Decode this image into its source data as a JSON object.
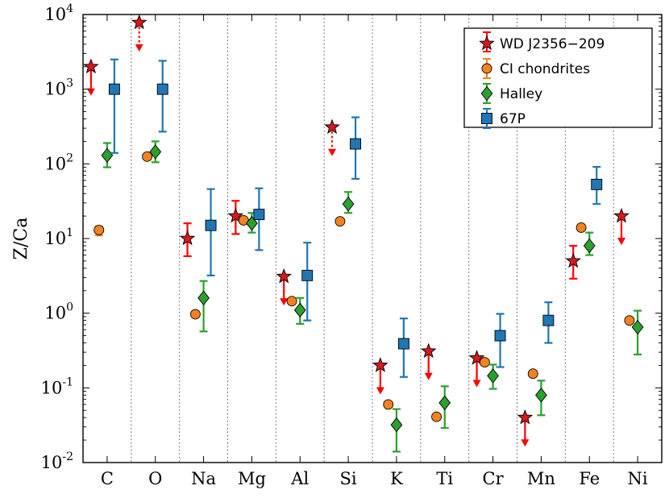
{
  "chart_data": {
    "type": "scatter",
    "yscale": "log",
    "ylim": [
      0.01,
      10000
    ],
    "ylabel": "Z/Ca",
    "xlabel": "",
    "grid": "vertical dotted separators between categories",
    "legend_position": "top-right",
    "categories": [
      "C",
      "O",
      "Na",
      "Mg",
      "Al",
      "Si",
      "K",
      "Ti",
      "Cr",
      "Mn",
      "Fe",
      "Ni"
    ],
    "yticks": [
      {
        "base": "10",
        "exp": "-2",
        "value": 0.01
      },
      {
        "base": "10",
        "exp": "-1",
        "value": 0.1
      },
      {
        "base": "10",
        "exp": "0",
        "value": 1
      },
      {
        "base": "10",
        "exp": "1",
        "value": 10
      },
      {
        "base": "10",
        "exp": "2",
        "value": 100
      },
      {
        "base": "10",
        "exp": "3",
        "value": 1000
      },
      {
        "base": "10",
        "exp": "4",
        "value": 10000
      }
    ],
    "series": [
      {
        "name": "WD J2356−209",
        "marker": "star",
        "color": "#d7191c",
        "arrow_color": "#ff0000",
        "points": [
          {
            "category": "C",
            "value": 2000,
            "upper_limit": true,
            "dotted": false
          },
          {
            "category": "O",
            "value": 7800,
            "upper_limit": true,
            "dotted": true
          },
          {
            "category": "Na",
            "value": 10,
            "low": 5.8,
            "high": 16
          },
          {
            "category": "Mg",
            "value": 20,
            "low": 11.5,
            "high": 32
          },
          {
            "category": "Al",
            "value": 3.1,
            "upper_limit": true,
            "dotted": false
          },
          {
            "category": "Si",
            "value": 310,
            "upper_limit": true,
            "dotted": true
          },
          {
            "category": "K",
            "value": 0.2,
            "upper_limit": true,
            "dotted": false
          },
          {
            "category": "Ti",
            "value": 0.31,
            "upper_limit": true,
            "dotted": false
          },
          {
            "category": "Cr",
            "value": 0.25,
            "upper_limit": true,
            "dotted": false
          },
          {
            "category": "Mn",
            "value": 0.04,
            "upper_limit": true,
            "dotted": false
          },
          {
            "category": "Fe",
            "value": 5,
            "low": 2.9,
            "high": 8
          },
          {
            "category": "Ni",
            "value": 20,
            "upper_limit": true,
            "dotted": false
          }
        ]
      },
      {
        "name": "CI chondrites",
        "marker": "circle",
        "color": "#f58220",
        "points": [
          {
            "category": "C",
            "value": 13,
            "low": 11,
            "high": 14.5
          },
          {
            "category": "O",
            "value": 125
          },
          {
            "category": "Na",
            "value": 0.97
          },
          {
            "category": "Mg",
            "value": 17.5
          },
          {
            "category": "Al",
            "value": 1.45
          },
          {
            "category": "Si",
            "value": 17
          },
          {
            "category": "K",
            "value": 0.06
          },
          {
            "category": "Ti",
            "value": 0.041
          },
          {
            "category": "Cr",
            "value": 0.22
          },
          {
            "category": "Mn",
            "value": 0.155
          },
          {
            "category": "Fe",
            "value": 14
          },
          {
            "category": "Ni",
            "value": 0.8
          }
        ]
      },
      {
        "name": "Halley",
        "marker": "diamond",
        "color": "#2ca02c",
        "points": [
          {
            "category": "C",
            "value": 130,
            "low": 90,
            "high": 190
          },
          {
            "category": "O",
            "value": 145,
            "low": 105,
            "high": 200
          },
          {
            "category": "Na",
            "value": 1.6,
            "low": 0.57,
            "high": 2.7
          },
          {
            "category": "Mg",
            "value": 16,
            "low": 12,
            "high": 22
          },
          {
            "category": "Al",
            "value": 1.1,
            "low": 0.72,
            "high": 1.6
          },
          {
            "category": "Si",
            "value": 29,
            "low": 22,
            "high": 42
          },
          {
            "category": "K",
            "value": 0.032,
            "low": 0.014,
            "high": 0.052
          },
          {
            "category": "Ti",
            "value": 0.063,
            "low": 0.029,
            "high": 0.105
          },
          {
            "category": "Cr",
            "value": 0.145,
            "low": 0.097,
            "high": 0.205
          },
          {
            "category": "Mn",
            "value": 0.08,
            "low": 0.043,
            "high": 0.125
          },
          {
            "category": "Fe",
            "value": 8,
            "low": 6,
            "high": 12
          },
          {
            "category": "Ni",
            "value": 0.65,
            "low": 0.28,
            "high": 1.08
          }
        ]
      },
      {
        "name": "67P",
        "marker": "square",
        "color": "#1f77b4",
        "points": [
          {
            "category": "C",
            "value": 1000,
            "low": 140,
            "high": 2500
          },
          {
            "category": "O",
            "value": 1000,
            "low": 270,
            "high": 2400
          },
          {
            "category": "Na",
            "value": 15,
            "low": 3.2,
            "high": 46
          },
          {
            "category": "Mg",
            "value": 21,
            "low": 7,
            "high": 47
          },
          {
            "category": "Al",
            "value": 3.2,
            "low": 0.8,
            "high": 8.8
          },
          {
            "category": "Si",
            "value": 185,
            "low": 63,
            "high": 420
          },
          {
            "category": "K",
            "value": 0.39,
            "low": 0.14,
            "high": 0.85
          },
          {
            "category": "Cr",
            "value": 0.5,
            "low": 0.19,
            "high": 0.98
          },
          {
            "category": "Mn",
            "value": 0.8,
            "low": 0.4,
            "high": 1.4
          },
          {
            "category": "Fe",
            "value": 53,
            "low": 29,
            "high": 91
          }
        ]
      }
    ]
  }
}
